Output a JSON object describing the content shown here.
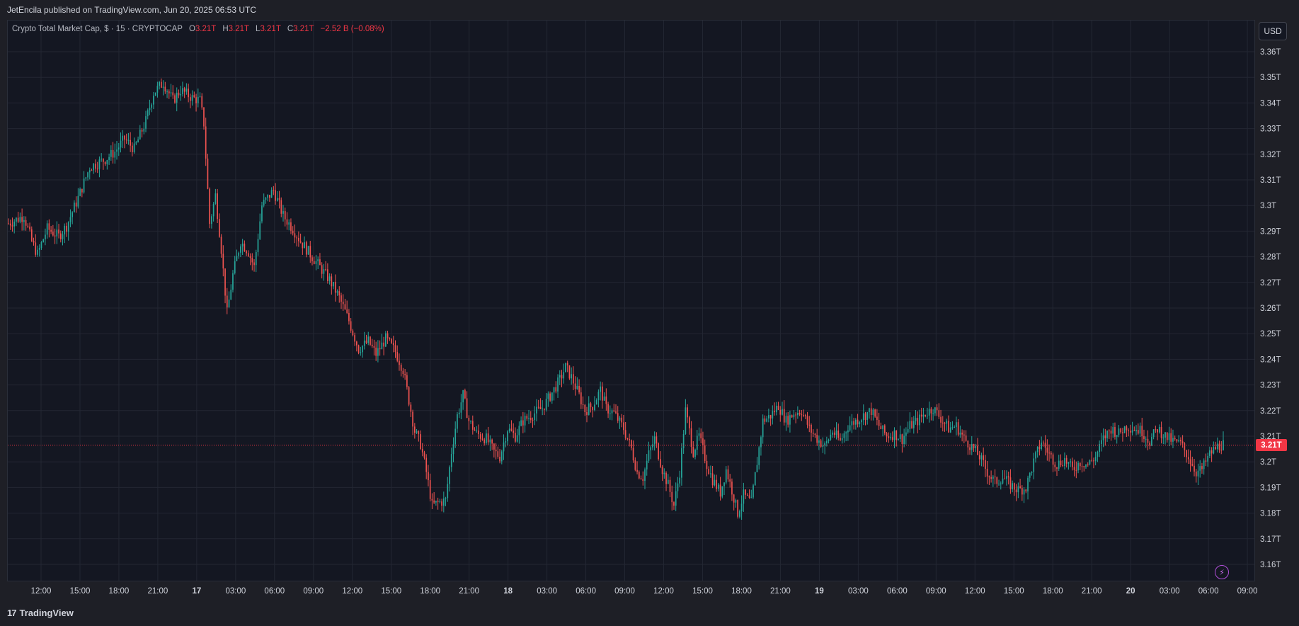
{
  "header": {
    "published": "JetEncila published on TradingView.com, Jun 20, 2025 06:53 UTC"
  },
  "legend": {
    "symbol": "Crypto Total Market Cap, $ · 15 · CRYPTOCAP",
    "o_label": "O",
    "o_value": "3.21T",
    "h_label": "H",
    "h_value": "3.21T",
    "l_label": "L",
    "l_value": "3.21T",
    "c_label": "C",
    "c_value": "3.21T",
    "change": "−2.52 B (−0.08%)"
  },
  "currency_button": "USD",
  "last_price_label": "3.21T",
  "footer": {
    "logo": "17",
    "brand": "TradingView"
  },
  "colors": {
    "up": "#26a69a",
    "down": "#ef5350",
    "background": "#141722",
    "grid": "#232733",
    "last_price_line": "#f23645",
    "text": "#d1d4dc"
  },
  "icons": {
    "bolt": "lightning-bolt-icon"
  },
  "chart_data": {
    "type": "candlestick",
    "interval": "15",
    "y_unit": "T",
    "ylim": [
      3.155,
      3.367
    ],
    "y_ticks": [
      "3.16T",
      "3.17T",
      "3.18T",
      "3.19T",
      "3.2T",
      "3.21T",
      "3.22T",
      "3.23T",
      "3.24T",
      "3.25T",
      "3.26T",
      "3.27T",
      "3.28T",
      "3.29T",
      "3.3T",
      "3.31T",
      "3.32T",
      "3.33T",
      "3.34T",
      "3.35T",
      "3.36T"
    ],
    "y_tick_values": [
      3.16,
      3.17,
      3.18,
      3.19,
      3.2,
      3.21,
      3.22,
      3.23,
      3.24,
      3.25,
      3.26,
      3.27,
      3.28,
      3.29,
      3.3,
      3.31,
      3.32,
      3.33,
      3.34,
      3.35,
      3.36
    ],
    "x_ticks": [
      "12:00",
      "15:00",
      "18:00",
      "21:00",
      "17",
      "03:00",
      "06:00",
      "09:00",
      "12:00",
      "15:00",
      "18:00",
      "21:00",
      "18",
      "03:00",
      "06:00",
      "09:00",
      "12:00",
      "15:00",
      "18:00",
      "21:00",
      "19",
      "03:00",
      "06:00",
      "09:00",
      "12:00",
      "15:00",
      "18:00",
      "21:00",
      "20",
      "03:00",
      "06:00",
      "09:00"
    ],
    "x_bold": [
      "17",
      "18",
      "19",
      "20"
    ],
    "x_start": "Jun 16 09:30",
    "x_end": "Jun 20 09:30",
    "last_close": 3.2065,
    "series_path": [
      [
        0,
        3.293
      ],
      [
        8,
        3.296
      ],
      [
        12,
        3.286
      ],
      [
        15,
        3.281
      ],
      [
        20,
        3.291
      ],
      [
        26,
        3.288
      ],
      [
        30,
        3.292
      ],
      [
        36,
        3.303
      ],
      [
        42,
        3.315
      ],
      [
        50,
        3.318
      ],
      [
        55,
        3.321
      ],
      [
        60,
        3.326
      ],
      [
        65,
        3.322
      ],
      [
        71,
        3.333
      ],
      [
        75,
        3.344
      ],
      [
        80,
        3.348
      ],
      [
        85,
        3.341
      ],
      [
        89,
        3.345
      ],
      [
        95,
        3.342
      ],
      [
        99,
        3.341
      ],
      [
        101,
        3.332
      ],
      [
        104,
        3.293
      ],
      [
        107,
        3.304
      ],
      [
        110,
        3.283
      ],
      [
        113,
        3.258
      ],
      [
        116,
        3.273
      ],
      [
        120,
        3.286
      ],
      [
        124,
        3.282
      ],
      [
        127,
        3.276
      ],
      [
        131,
        3.3
      ],
      [
        134,
        3.303
      ],
      [
        137,
        3.306
      ],
      [
        142,
        3.296
      ],
      [
        147,
        3.291
      ],
      [
        151,
        3.286
      ],
      [
        156,
        3.281
      ],
      [
        161,
        3.276
      ],
      [
        166,
        3.271
      ],
      [
        171,
        3.264
      ],
      [
        176,
        3.255
      ],
      [
        181,
        3.244
      ],
      [
        186,
        3.247
      ],
      [
        190,
        3.242
      ],
      [
        195,
        3.248
      ],
      [
        200,
        3.243
      ],
      [
        204,
        3.236
      ],
      [
        207,
        3.224
      ],
      [
        210,
        3.212
      ],
      [
        213,
        3.207
      ],
      [
        216,
        3.196
      ],
      [
        219,
        3.183
      ],
      [
        222,
        3.184
      ],
      [
        226,
        3.185
      ],
      [
        229,
        3.204
      ],
      [
        232,
        3.218
      ],
      [
        235,
        3.226
      ],
      [
        238,
        3.216
      ],
      [
        242,
        3.211
      ],
      [
        247,
        3.209
      ],
      [
        251,
        3.204
      ],
      [
        254,
        3.202
      ],
      [
        258,
        3.213
      ],
      [
        262,
        3.21
      ],
      [
        266,
        3.216
      ],
      [
        272,
        3.219
      ],
      [
        276,
        3.221
      ],
      [
        281,
        3.227
      ],
      [
        285,
        3.232
      ],
      [
        288,
        3.237
      ],
      [
        291,
        3.233
      ],
      [
        295,
        3.226
      ],
      [
        298,
        3.22
      ],
      [
        302,
        3.222
      ],
      [
        306,
        3.228
      ],
      [
        309,
        3.221
      ],
      [
        313,
        3.219
      ],
      [
        318,
        3.213
      ],
      [
        322,
        3.205
      ],
      [
        325,
        3.196
      ],
      [
        328,
        3.194
      ],
      [
        331,
        3.203
      ],
      [
        334,
        3.209
      ],
      [
        338,
        3.197
      ],
      [
        341,
        3.191
      ],
      [
        344,
        3.183
      ],
      [
        347,
        3.196
      ],
      [
        350,
        3.22
      ],
      [
        354,
        3.204
      ],
      [
        357,
        3.21
      ],
      [
        361,
        3.199
      ],
      [
        364,
        3.193
      ],
      [
        368,
        3.188
      ],
      [
        371,
        3.197
      ],
      [
        374,
        3.189
      ],
      [
        377,
        3.18
      ],
      [
        380,
        3.187
      ],
      [
        384,
        3.184
      ],
      [
        387,
        3.2
      ],
      [
        390,
        3.216
      ],
      [
        394,
        3.218
      ],
      [
        398,
        3.222
      ],
      [
        402,
        3.216
      ],
      [
        406,
        3.219
      ],
      [
        410,
        3.22
      ],
      [
        414,
        3.213
      ],
      [
        418,
        3.209
      ],
      [
        422,
        3.206
      ],
      [
        426,
        3.212
      ],
      [
        430,
        3.208
      ],
      [
        434,
        3.214
      ],
      [
        438,
        3.216
      ],
      [
        442,
        3.218
      ],
      [
        446,
        3.22
      ],
      [
        450,
        3.214
      ],
      [
        454,
        3.21
      ],
      [
        458,
        3.211
      ],
      [
        462,
        3.209
      ],
      [
        466,
        3.214
      ],
      [
        470,
        3.216
      ],
      [
        474,
        3.219
      ],
      [
        478,
        3.221
      ],
      [
        482,
        3.217
      ],
      [
        486,
        3.213
      ],
      [
        490,
        3.214
      ],
      [
        494,
        3.209
      ],
      [
        498,
        3.206
      ],
      [
        502,
        3.202
      ],
      [
        506,
        3.196
      ],
      [
        510,
        3.192
      ],
      [
        514,
        3.194
      ],
      [
        518,
        3.191
      ],
      [
        522,
        3.189
      ],
      [
        526,
        3.19
      ],
      [
        530,
        3.2
      ],
      [
        534,
        3.208
      ],
      [
        538,
        3.203
      ],
      [
        542,
        3.199
      ],
      [
        546,
        3.201
      ],
      [
        550,
        3.197
      ],
      [
        554,
        3.2
      ],
      [
        558,
        3.199
      ],
      [
        562,
        3.202
      ],
      [
        566,
        3.209
      ],
      [
        570,
        3.213
      ],
      [
        574,
        3.211
      ],
      [
        578,
        3.214
      ],
      [
        582,
        3.213
      ],
      [
        586,
        3.212
      ],
      [
        590,
        3.208
      ],
      [
        594,
        3.213
      ],
      [
        598,
        3.21
      ],
      [
        602,
        3.208
      ],
      [
        606,
        3.207
      ],
      [
        610,
        3.202
      ],
      [
        614,
        3.196
      ],
      [
        617,
        3.197
      ],
      [
        621,
        3.203
      ],
      [
        625,
        3.206
      ],
      [
        628,
        3.207
      ]
    ]
  }
}
